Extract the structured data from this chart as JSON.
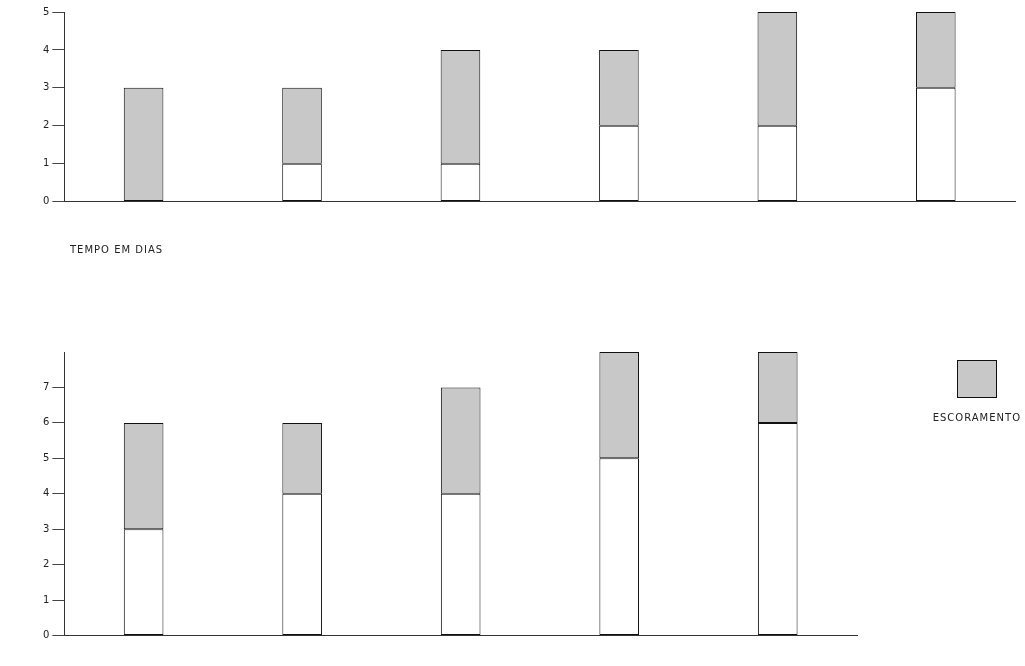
{
  "chart_data": [
    {
      "type": "bar",
      "xlabel": "TEMPO EM DIAS",
      "categories": [
        null,
        null,
        null,
        null,
        null,
        null
      ],
      "stacked": true,
      "ylim": [
        0,
        5
      ],
      "yticks": [
        0,
        1,
        2,
        3,
        4,
        5
      ],
      "grid": false,
      "legend": false,
      "series": [
        {
          "color": "#ffffff",
          "values": [
            0,
            1,
            1,
            2,
            2,
            3
          ]
        },
        {
          "color": "#c8c8c8",
          "values": [
            3,
            2,
            3,
            2,
            3,
            2
          ]
        }
      ]
    },
    {
      "type": "bar",
      "categories": [
        null,
        null,
        null,
        null,
        null
      ],
      "stacked": true,
      "ylim": [
        0,
        8
      ],
      "yticks": [
        0,
        1,
        2,
        3,
        4,
        5,
        6,
        7
      ],
      "grid": false,
      "legend": "top right",
      "series": [
        {
          "color": "#ffffff",
          "values": [
            3,
            4,
            4,
            5,
            6
          ]
        },
        {
          "name": "ESCORAMENTO",
          "color": "#c8c8c8",
          "values": [
            3,
            2,
            3,
            3,
            2
          ]
        }
      ]
    }
  ]
}
